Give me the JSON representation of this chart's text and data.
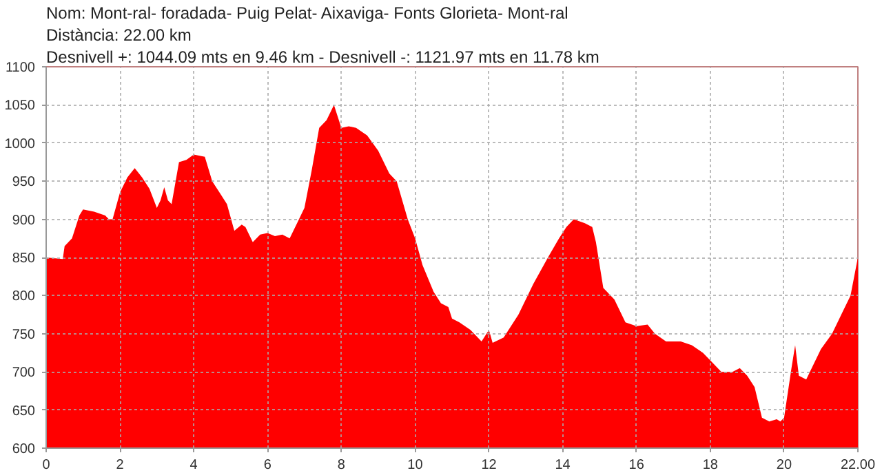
{
  "chart_data": {
    "type": "area",
    "title": "Nom: Mont-ral- foradada- Puig Pelat- Aixaviga- Fonts Glorieta- Mont-ral",
    "subtitle": "Distància: 22.00 km",
    "annotations": [
      "Desnivell +: 1044.09 mts en 9.46 km - Desnivell -: 1121.97 mts en 11.78 km"
    ],
    "x": [
      0,
      0.45,
      0.5,
      0.7,
      0.9,
      1.0,
      1.3,
      1.6,
      1.7,
      1.8,
      2.0,
      2.2,
      2.4,
      2.6,
      2.8,
      3.0,
      3.1,
      3.2,
      3.3,
      3.4,
      3.6,
      3.8,
      4.0,
      4.3,
      4.5,
      4.7,
      4.9,
      5.1,
      5.3,
      5.4,
      5.6,
      5.8,
      6.0,
      6.2,
      6.4,
      6.6,
      6.8,
      7.0,
      7.2,
      7.4,
      7.6,
      7.8,
      8.0,
      8.2,
      8.4,
      8.7,
      9.0,
      9.3,
      9.5,
      9.8,
      10.0,
      10.2,
      10.5,
      10.7,
      10.9,
      11.0,
      11.2,
      11.5,
      11.8,
      12.0,
      12.1,
      12.4,
      12.8,
      13.2,
      13.6,
      13.9,
      14.1,
      14.3,
      14.6,
      14.8,
      14.9,
      15.1,
      15.4,
      15.7,
      16.0,
      16.3,
      16.5,
      16.8,
      17.2,
      17.5,
      17.8,
      18.0,
      18.3,
      18.6,
      18.8,
      19.0,
      19.2,
      19.4,
      19.6,
      19.8,
      19.9,
      20.0,
      20.2,
      20.3,
      20.4,
      20.6,
      21.0,
      21.3,
      21.6,
      21.8,
      22.0
    ],
    "series": [
      {
        "color": "#ff0000",
        "values": [
          850,
          848,
          865,
          875,
          905,
          913,
          910,
          905,
          900,
          900,
          935,
          955,
          967,
          955,
          940,
          915,
          925,
          942,
          925,
          920,
          975,
          978,
          985,
          982,
          950,
          935,
          920,
          885,
          893,
          890,
          870,
          880,
          882,
          878,
          880,
          875,
          895,
          915,
          965,
          1020,
          1030,
          1050,
          1020,
          1022,
          1020,
          1010,
          990,
          960,
          950,
          900,
          875,
          840,
          805,
          790,
          785,
          770,
          765,
          755,
          740,
          755,
          738,
          745,
          775,
          815,
          850,
          875,
          890,
          900,
          895,
          890,
          870,
          810,
          795,
          765,
          760,
          762,
          750,
          740,
          740,
          735,
          725,
          715,
          700,
          700,
          705,
          695,
          680,
          640,
          635,
          638,
          635,
          640,
          705,
          735,
          695,
          690,
          730,
          750,
          780,
          800,
          850
        ]
      }
    ],
    "xlim": [
      0,
      22
    ],
    "xticks": [
      0,
      2,
      4,
      6,
      8,
      10,
      12,
      14,
      16,
      18,
      20,
      {
        "value": 22,
        "label": "22.00"
      }
    ],
    "ylim": [
      600,
      1100
    ],
    "yticks": [
      600,
      650,
      700,
      750,
      800,
      850,
      900,
      950,
      1000,
      1050,
      1100
    ],
    "grid": true
  }
}
